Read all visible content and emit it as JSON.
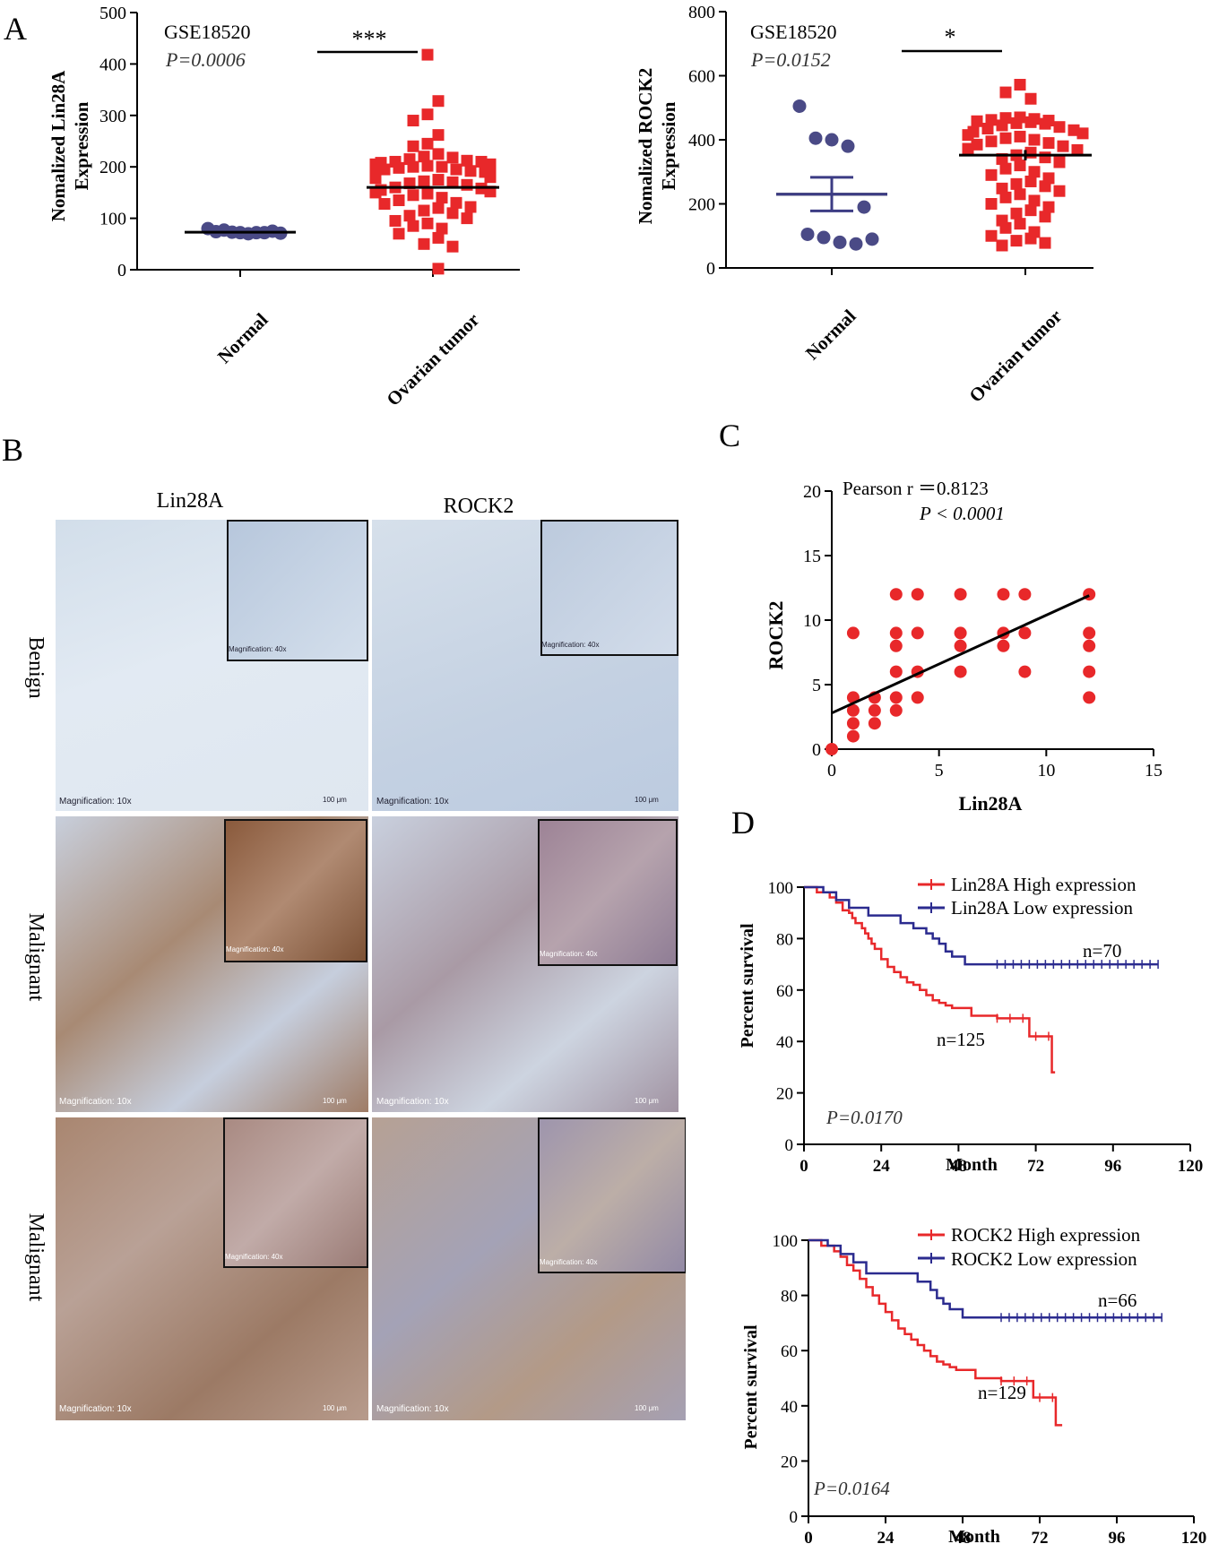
{
  "panels": {
    "A": "A",
    "B": "B",
    "C": "C",
    "D": "D"
  },
  "colors": {
    "normal_dot": "#4a4a86",
    "tumor_square": "#e8282a",
    "scatter_red": "#e8282a",
    "survival_high": "#e8282a",
    "survival_low": "#2b2b8f",
    "tissue_benign_bg": "#dfe8f1",
    "tissue_benign_stain": "#3b5a95",
    "tissue_malignant_brown": "#9c6033",
    "tissue_malignant_blue": "#6877a6"
  },
  "panel_B": {
    "columns": [
      "Lin28A",
      "ROCK2"
    ],
    "rows": [
      "Benign",
      "Malignant",
      "Malignant"
    ],
    "magnification_label": "Magnification: 10x",
    "inset_label": "Magnification: 40x",
    "scale_label": "100 μm"
  },
  "chart_data": [
    {
      "id": "A-left",
      "type": "scatter",
      "dataset": "GSE18520",
      "pvalue": "P=0.0006",
      "significance": "***",
      "ylabel_line1": "Nomalized Lin28A",
      "ylabel_line2": "Expression",
      "categories": [
        "Normal",
        "Ovarian tumor"
      ],
      "ylim": [
        0,
        500
      ],
      "yticks": [
        "0",
        "100",
        "200",
        "300",
        "400",
        "500"
      ],
      "normal_values": [
        80,
        77,
        72,
        72,
        75,
        74,
        73,
        70,
        72,
        71
      ],
      "normal_mean": 73,
      "tumor_values": [
        418,
        328,
        302,
        290,
        262,
        245,
        240,
        225,
        220,
        218,
        215,
        212,
        210,
        210,
        208,
        205,
        205,
        202,
        200,
        200,
        198,
        195,
        195,
        192,
        190,
        190,
        188,
        185,
        182,
        180,
        178,
        175,
        172,
        170,
        168,
        165,
        160,
        158,
        155,
        152,
        150,
        148,
        145,
        140,
        135,
        130,
        128,
        122,
        120,
        115,
        110,
        105,
        100,
        95,
        90,
        85,
        80,
        70,
        62,
        50,
        45,
        2
      ],
      "tumor_mean": 160
    },
    {
      "id": "A-right",
      "type": "scatter",
      "dataset": "GSE18520",
      "pvalue": "P=0.0152",
      "significance": "*",
      "ylabel_line1": "Nomalized ROCK2",
      "ylabel_line2": "Expression",
      "categories": [
        "Normal",
        "Ovarian tumor"
      ],
      "ylim": [
        0,
        800
      ],
      "yticks": [
        "0",
        "200",
        "400",
        "600",
        "800"
      ],
      "normal_values": [
        505,
        405,
        400,
        380,
        190,
        105,
        95,
        80,
        75,
        90
      ],
      "normal_mean": 230,
      "normal_sem_low": 178,
      "normal_sem_high": 283,
      "tumor_values": [
        572,
        548,
        528,
        470,
        468,
        465,
        462,
        460,
        458,
        455,
        452,
        450,
        445,
        440,
        435,
        430,
        425,
        420,
        415,
        410,
        405,
        400,
        395,
        390,
        385,
        380,
        372,
        368,
        360,
        352,
        345,
        340,
        330,
        320,
        310,
        300,
        290,
        280,
        270,
        262,
        255,
        248,
        240,
        230,
        220,
        210,
        200,
        190,
        180,
        170,
        160,
        148,
        138,
        125,
        112,
        100,
        92,
        85,
        78,
        70
      ],
      "tumor_mean": 352,
      "tumor_sem_low": 336,
      "tumor_sem_high": 368
    },
    {
      "id": "C",
      "type": "scatter",
      "annotation_line1": "Pearson r ＝0.8123",
      "annotation_line2": "P < 0.0001",
      "xlabel": "Lin28A",
      "ylabel": "ROCK2",
      "xlim": [
        0,
        15
      ],
      "ylim": [
        0,
        20
      ],
      "xticks": [
        "0",
        "5",
        "10",
        "15"
      ],
      "yticks": [
        "0",
        "5",
        "10",
        "15",
        "20"
      ],
      "points": [
        [
          0,
          0
        ],
        [
          1,
          1
        ],
        [
          1,
          2
        ],
        [
          1,
          3
        ],
        [
          1,
          4
        ],
        [
          1,
          9
        ],
        [
          2,
          2
        ],
        [
          2,
          3
        ],
        [
          2,
          4
        ],
        [
          3,
          3
        ],
        [
          3,
          4
        ],
        [
          3,
          6
        ],
        [
          3,
          8
        ],
        [
          3,
          9
        ],
        [
          3,
          12
        ],
        [
          4,
          4
        ],
        [
          4,
          6
        ],
        [
          4,
          9
        ],
        [
          4,
          12
        ],
        [
          6,
          6
        ],
        [
          6,
          8
        ],
        [
          6,
          9
        ],
        [
          6,
          12
        ],
        [
          8,
          8
        ],
        [
          8,
          9
        ],
        [
          8,
          12
        ],
        [
          9,
          6
        ],
        [
          9,
          9
        ],
        [
          9,
          12
        ],
        [
          12,
          4
        ],
        [
          12,
          6
        ],
        [
          12,
          8
        ],
        [
          12,
          9
        ],
        [
          12,
          12
        ]
      ],
      "fit_line": [
        [
          0,
          2.8
        ],
        [
          12,
          11.9
        ]
      ]
    },
    {
      "id": "D-top",
      "type": "line",
      "xlabel": "Month",
      "ylabel": "Percent survival",
      "xlim": [
        0,
        120
      ],
      "ylim": [
        0,
        100
      ],
      "xticks": [
        "0",
        "24",
        "48",
        "72",
        "96",
        "120"
      ],
      "yticks": [
        "0",
        "20",
        "40",
        "60",
        "80",
        "100"
      ],
      "pvalue": "P=0.0170",
      "series": [
        {
          "name": "Lin28A High expression",
          "label": "n=125",
          "x": [
            0,
            4,
            8,
            10,
            12,
            14,
            15,
            16,
            18,
            19,
            20,
            21,
            22,
            24,
            26,
            28,
            30,
            32,
            34,
            36,
            38,
            40,
            42,
            44,
            46,
            48,
            52,
            56,
            60,
            64,
            68,
            70,
            72,
            76,
            77,
            78
          ],
          "y": [
            100,
            98,
            96,
            94,
            91,
            90,
            88,
            86,
            84,
            82,
            80,
            78,
            76,
            72,
            69,
            67,
            65,
            63,
            62,
            60,
            58,
            56,
            55,
            54,
            53,
            53,
            50,
            50,
            49,
            49,
            49,
            42,
            42,
            42,
            28,
            28
          ]
        },
        {
          "name": "Lin28A Low expression",
          "label": "n=70",
          "x": [
            0,
            6,
            10,
            14,
            20,
            26,
            30,
            34,
            38,
            40,
            42,
            44,
            46,
            50,
            60,
            80,
            100,
            110
          ],
          "y": [
            100,
            98,
            95,
            92,
            89,
            89,
            86,
            84,
            82,
            80,
            78,
            75,
            73,
            70,
            70,
            70,
            70,
            70
          ]
        }
      ]
    },
    {
      "id": "D-bottom",
      "type": "line",
      "xlabel": "Month",
      "ylabel": "Percent survival",
      "xlim": [
        0,
        120
      ],
      "ylim": [
        0,
        100
      ],
      "xticks": [
        "0",
        "24",
        "48",
        "72",
        "96",
        "120"
      ],
      "yticks": [
        "0",
        "20",
        "40",
        "60",
        "80",
        "100"
      ],
      "pvalue": "P=0.0164",
      "series": [
        {
          "name": "ROCK2 High expression",
          "label": "n=129",
          "x": [
            0,
            4,
            8,
            10,
            12,
            14,
            16,
            18,
            20,
            22,
            24,
            26,
            28,
            30,
            32,
            34,
            36,
            38,
            40,
            42,
            44,
            46,
            48,
            52,
            56,
            60,
            64,
            68,
            70,
            72,
            76,
            77,
            79
          ],
          "y": [
            100,
            98,
            96,
            94,
            91,
            89,
            86,
            83,
            80,
            77,
            74,
            71,
            68,
            66,
            64,
            62,
            60,
            58,
            56,
            55,
            54,
            53,
            53,
            50,
            50,
            49,
            49,
            49,
            43,
            43,
            43,
            33,
            33
          ]
        },
        {
          "name": "ROCK2 Low expression",
          "label": "n=66",
          "x": [
            0,
            6,
            10,
            14,
            18,
            30,
            34,
            38,
            40,
            42,
            44,
            46,
            48,
            52,
            60,
            80,
            100,
            110
          ],
          "y": [
            100,
            98,
            95,
            92,
            88,
            88,
            85,
            82,
            79,
            77,
            75,
            75,
            72,
            72,
            72,
            72,
            72,
            72
          ]
        }
      ]
    }
  ]
}
